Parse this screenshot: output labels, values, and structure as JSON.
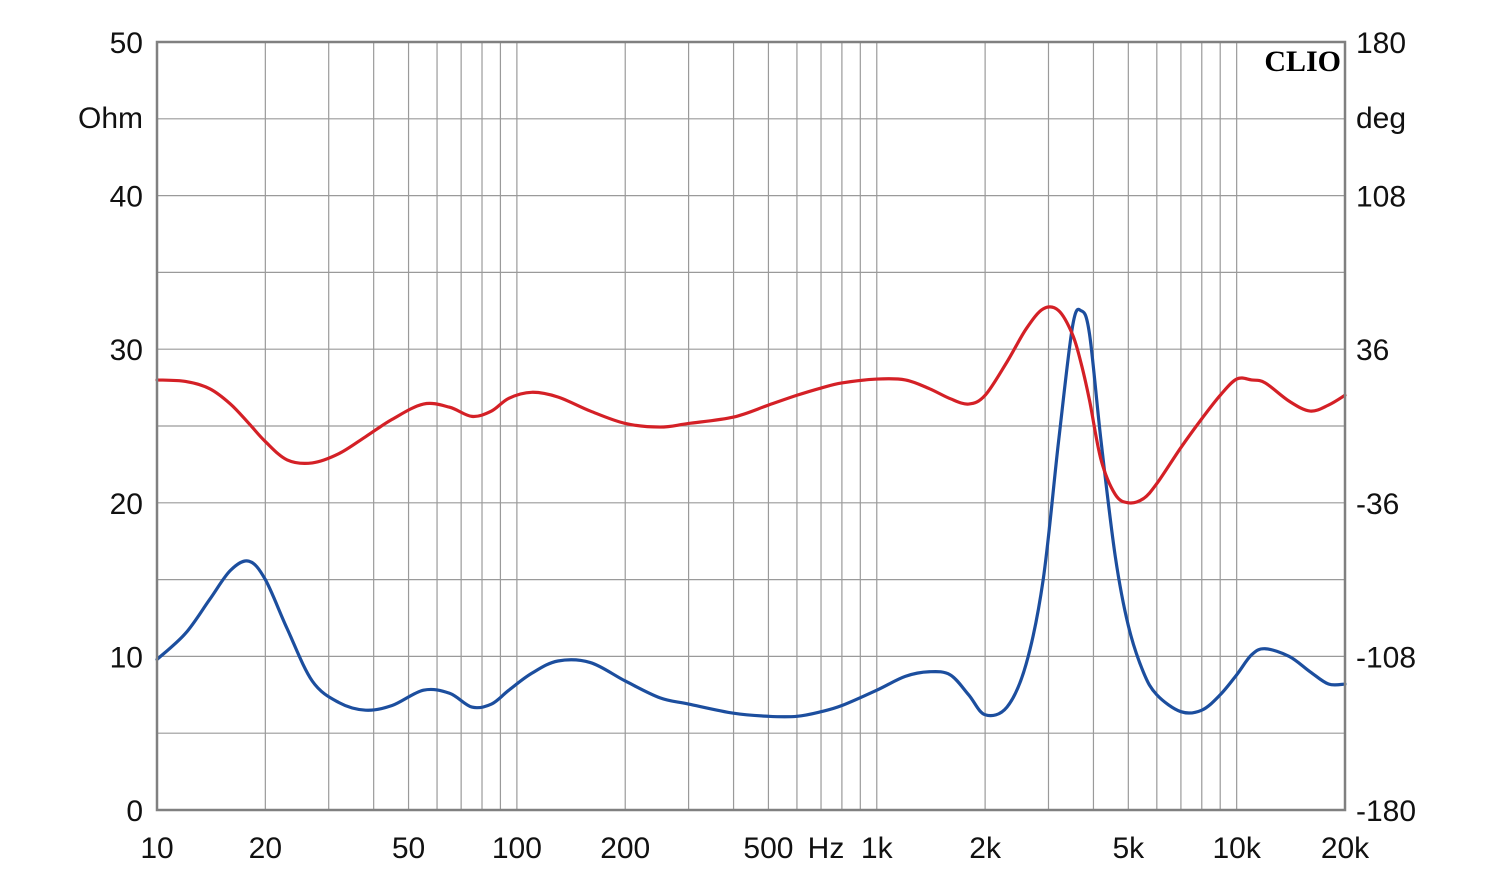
{
  "chart_data": {
    "type": "line",
    "brand": "CLIO",
    "x_scale": "log",
    "xlim": [
      10,
      20000
    ],
    "x_tick_labels": [
      {
        "value": 10,
        "label": "10"
      },
      {
        "value": 20,
        "label": "20"
      },
      {
        "value": 50,
        "label": "50"
      },
      {
        "value": 100,
        "label": "100"
      },
      {
        "value": 200,
        "label": "200"
      },
      {
        "value": 500,
        "label": "500"
      },
      {
        "value": 1000,
        "label": "1k"
      },
      {
        "value": 2000,
        "label": "2k"
      },
      {
        "value": 5000,
        "label": "5k"
      },
      {
        "value": 10000,
        "label": "10k"
      },
      {
        "value": 20000,
        "label": "20k"
      }
    ],
    "x_unit_label": "Hz",
    "x_grid_values": [
      10,
      20,
      30,
      40,
      50,
      60,
      70,
      80,
      90,
      100,
      200,
      300,
      400,
      500,
      600,
      700,
      800,
      900,
      1000,
      2000,
      3000,
      4000,
      5000,
      6000,
      7000,
      8000,
      9000,
      10000,
      20000
    ],
    "y_left": {
      "unit": "Ohm",
      "ylim": [
        0,
        50
      ],
      "ticks": [
        0,
        10,
        20,
        30,
        40,
        50
      ]
    },
    "y_right": {
      "unit": "deg",
      "ylim": [
        -180,
        180
      ],
      "ticks": [
        -180,
        -108,
        -36,
        36,
        108,
        180
      ]
    },
    "y_grid_values": [
      0,
      5,
      10,
      15,
      20,
      25,
      30,
      35,
      40,
      45,
      50
    ],
    "grid": true,
    "series": [
      {
        "axis": "left",
        "color": "#1c4e9e",
        "x": [
          10,
          12,
          14,
          16,
          18,
          20,
          23,
          27,
          32,
          38,
          45,
          55,
          65,
          75,
          85,
          95,
          110,
          130,
          160,
          200,
          250,
          300,
          400,
          500,
          600,
          700,
          800,
          1000,
          1200,
          1400,
          1600,
          1800,
          2000,
          2300,
          2600,
          2900,
          3200,
          3500,
          3700,
          3900,
          4200,
          4600,
          5000,
          5500,
          6000,
          7000,
          8000,
          9000,
          10000,
          11000,
          12000,
          14000,
          16000,
          18000,
          20000
        ],
        "values": [
          9.8,
          11.5,
          13.7,
          15.6,
          16.2,
          15.0,
          11.8,
          8.4,
          7.0,
          6.5,
          6.8,
          7.8,
          7.6,
          6.7,
          6.9,
          7.8,
          8.9,
          9.7,
          9.6,
          8.4,
          7.3,
          6.9,
          6.3,
          6.1,
          6.1,
          6.4,
          6.8,
          7.8,
          8.7,
          9.0,
          8.8,
          7.5,
          6.2,
          6.7,
          9.5,
          15.0,
          24.0,
          31.5,
          32.5,
          31.0,
          24.0,
          16.5,
          12.0,
          9.0,
          7.5,
          6.4,
          6.5,
          7.5,
          8.8,
          10.1,
          10.5,
          10.0,
          9.0,
          8.2,
          8.2
        ]
      },
      {
        "axis": "right",
        "color": "#d42026",
        "x": [
          10,
          12,
          14,
          16,
          18,
          20,
          23,
          27,
          32,
          38,
          45,
          55,
          65,
          75,
          85,
          95,
          110,
          130,
          160,
          200,
          250,
          300,
          400,
          500,
          600,
          700,
          800,
          1000,
          1200,
          1400,
          1600,
          1800,
          2000,
          2300,
          2600,
          2900,
          3200,
          3500,
          3700,
          3900,
          4200,
          4600,
          5000,
          5500,
          6000,
          7000,
          8000,
          9000,
          10000,
          11000,
          12000,
          14000,
          16000,
          18000,
          20000
        ],
        "values": [
          21.6,
          20.9,
          17.5,
          10.3,
          1.2,
          -7.3,
          -15.9,
          -17.3,
          -13.0,
          -5.0,
          3.1,
          10.3,
          8.8,
          4.5,
          7.0,
          13.0,
          15.8,
          13.6,
          7.0,
          1.2,
          -0.5,
          1.2,
          4.2,
          9.8,
          14.4,
          17.8,
          20.2,
          22.0,
          21.6,
          17.5,
          12.8,
          10.3,
          14.4,
          30.0,
          45.5,
          54.9,
          54.1,
          42.8,
          29.1,
          12.1,
          -15.9,
          -32.1,
          -36.0,
          -34.1,
          -27.0,
          -10.1,
          3.4,
          14.4,
          22.0,
          21.6,
          20.2,
          11.6,
          7.0,
          9.8,
          14.4
        ]
      }
    ]
  }
}
